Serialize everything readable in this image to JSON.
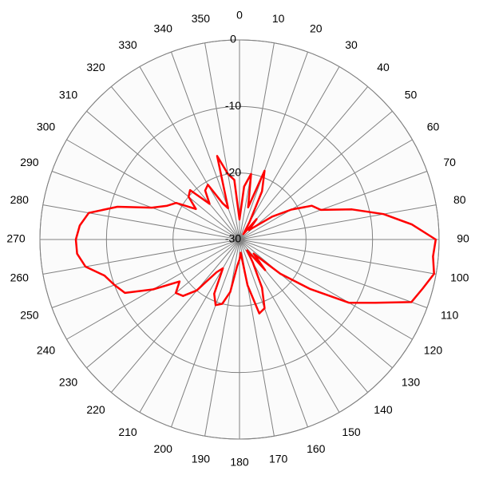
{
  "chart_data": {
    "type": "polar",
    "theta": [
      0,
      5,
      10,
      15,
      20,
      25,
      30,
      35,
      40,
      45,
      50,
      55,
      60,
      65,
      70,
      75,
      80,
      85,
      90,
      95,
      100,
      105,
      110,
      115,
      120,
      125,
      130,
      135,
      140,
      145,
      150,
      155,
      160,
      165,
      170,
      175,
      180,
      185,
      190,
      195,
      200,
      205,
      210,
      215,
      220,
      225,
      230,
      235,
      240,
      245,
      250,
      255,
      260,
      265,
      270,
      275,
      280,
      285,
      290,
      295,
      300,
      305,
      310,
      315,
      320,
      325,
      330,
      335,
      340,
      345,
      350,
      355
    ],
    "values": [
      -27,
      -22,
      -20,
      -25,
      -19,
      -22,
      -27,
      -29,
      -26,
      -28,
      -27,
      -24,
      -21,
      -18,
      -17,
      -12.5,
      -8,
      -4,
      -0.5,
      -0.8,
      -0.3,
      -1.5,
      -2.5,
      -7.5,
      -11,
      -17,
      -22,
      -27,
      -24,
      -28,
      -26,
      -22,
      -19,
      -18.5,
      -23,
      -28,
      -27,
      -26,
      -22,
      -20,
      -19.5,
      -21,
      -25,
      -24,
      -20,
      -18,
      -17.5,
      -19,
      -15,
      -11,
      -10,
      -9,
      -6.5,
      -5.5,
      -5.4,
      -5.9,
      -7,
      -11,
      -16,
      -18,
      -19,
      -22,
      -20,
      -19.5,
      -23,
      -21,
      -20.5,
      -24,
      -25,
      -17,
      -20,
      -21
    ],
    "color": "#ff0000",
    "rlim": [
      -30,
      0
    ],
    "rticks": [
      -30,
      -20,
      -10,
      0
    ],
    "thetaticks": [
      0,
      10,
      20,
      30,
      40,
      50,
      60,
      70,
      80,
      90,
      100,
      110,
      120,
      130,
      140,
      150,
      160,
      170,
      180,
      190,
      200,
      210,
      220,
      230,
      240,
      250,
      260,
      270,
      280,
      290,
      300,
      310,
      320,
      330,
      340,
      350
    ],
    "grid": true
  }
}
